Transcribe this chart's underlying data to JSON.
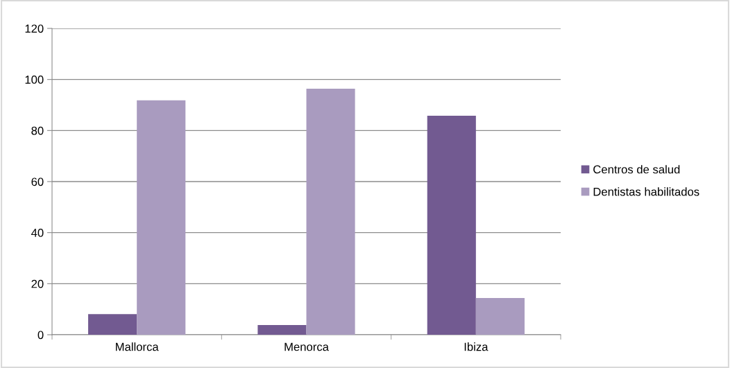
{
  "chart_data": {
    "type": "bar",
    "categories": [
      "Mallorca",
      "Menorca",
      "Ibiza"
    ],
    "series": [
      {
        "name": "Centros de salud",
        "color": "#725a91",
        "values": [
          8.1,
          3.8,
          85.8
        ]
      },
      {
        "name": "Dentistas habilitados",
        "color": "#a99bbf",
        "values": [
          91.8,
          96.4,
          14.4
        ]
      }
    ],
    "ylim": [
      0,
      120
    ],
    "yticks": [
      0,
      20,
      40,
      60,
      80,
      100,
      120
    ],
    "grid": "y",
    "legend": "right"
  }
}
